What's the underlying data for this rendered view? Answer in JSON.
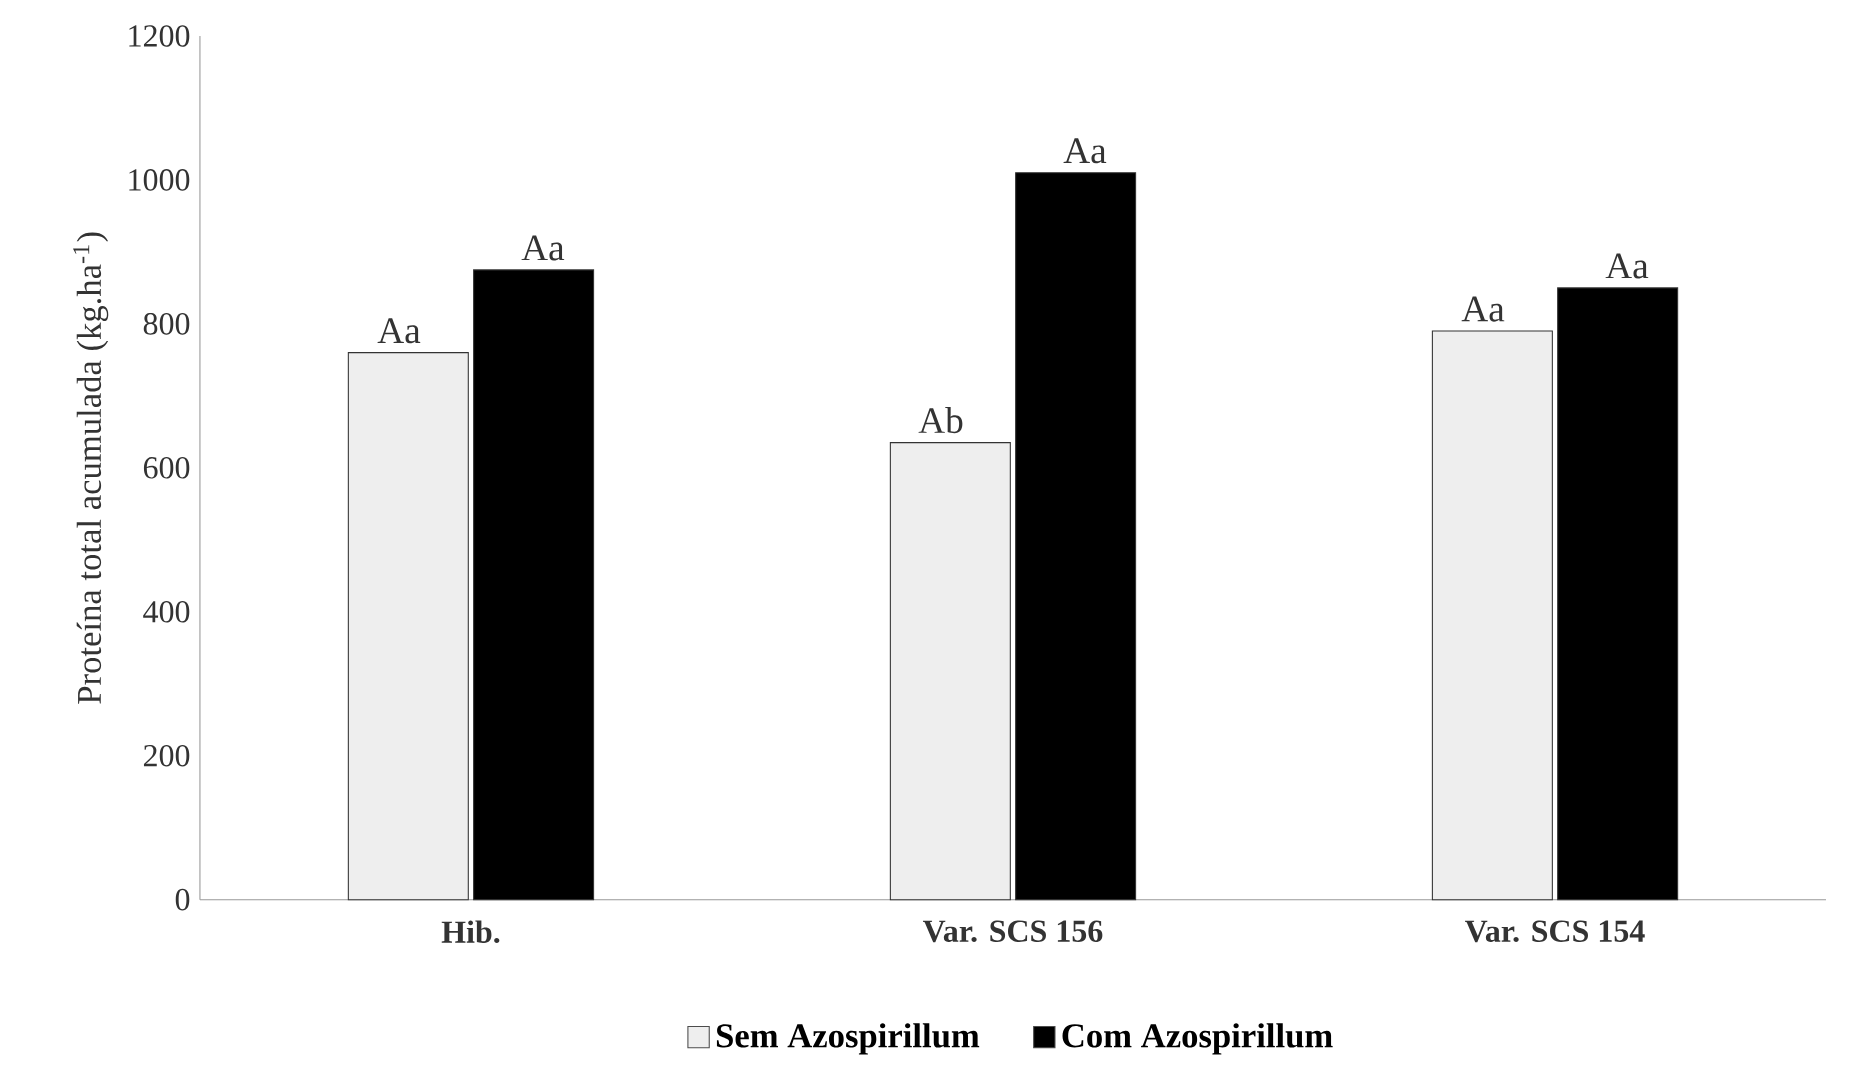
{
  "chart_data": {
    "type": "bar",
    "ylabel": "Proteína total acumulada (kg.ha$^{-1}$)",
    "categories": [
      "Hib.",
      "Var. SCS 156",
      "Var. SCS 154"
    ],
    "series": [
      {
        "name": "Sem Azospirillum",
        "color": "#eeeeee",
        "values": [
          760,
          635,
          790
        ],
        "value_labels": [
          "Aa",
          "Ab",
          "Aa"
        ]
      },
      {
        "name": "Com Azospirillum",
        "color": "#000000",
        "values": [
          875,
          1010,
          850
        ],
        "value_labels": [
          "Aa",
          "Aa",
          "Aa"
        ]
      }
    ],
    "ylim": [
      0,
      1200
    ],
    "yticks": [
      0,
      200,
      400,
      600,
      800,
      1000,
      1200
    ],
    "grid": false,
    "legend": "bottom"
  }
}
